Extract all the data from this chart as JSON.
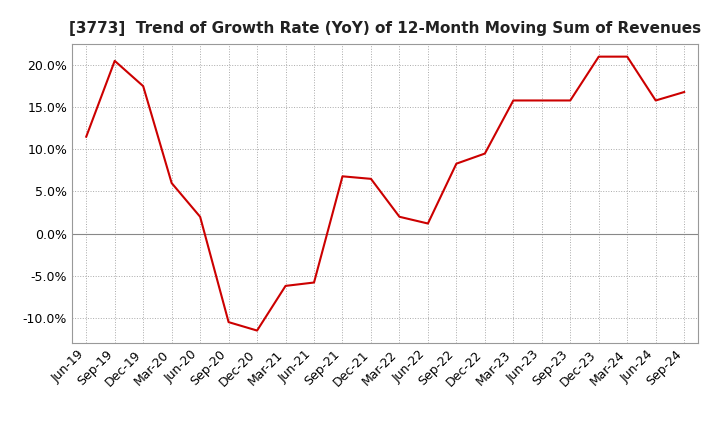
{
  "title": "[3773]  Trend of Growth Rate (YoY) of 12-Month Moving Sum of Revenues",
  "line_color": "#cc0000",
  "background_color": "#ffffff",
  "plot_bg_color": "#ffffff",
  "grid_color": "#aaaaaa",
  "ylim": [
    -0.13,
    0.225
  ],
  "yticks": [
    -0.1,
    -0.05,
    0.0,
    0.05,
    0.1,
    0.15,
    0.2
  ],
  "ytick_labels": [
    "-10.0%",
    "-5.0%",
    "0.0%",
    "5.0%",
    "10.0%",
    "15.0%",
    "20.0%"
  ],
  "x_labels": [
    "Jun-19",
    "Sep-19",
    "Dec-19",
    "Mar-20",
    "Jun-20",
    "Sep-20",
    "Dec-20",
    "Mar-21",
    "Jun-21",
    "Sep-21",
    "Dec-21",
    "Mar-22",
    "Jun-22",
    "Sep-22",
    "Dec-22",
    "Mar-23",
    "Jun-23",
    "Sep-23",
    "Dec-23",
    "Mar-24",
    "Jun-24",
    "Sep-24"
  ],
  "y_values": [
    0.115,
    0.205,
    0.175,
    0.06,
    0.02,
    -0.105,
    -0.115,
    -0.062,
    -0.058,
    0.068,
    0.065,
    0.02,
    0.012,
    0.083,
    0.095,
    0.158,
    0.158,
    0.158,
    0.21,
    0.21,
    0.158,
    0.168
  ],
  "title_fontsize": 11,
  "tick_fontsize": 9,
  "line_width": 1.5
}
